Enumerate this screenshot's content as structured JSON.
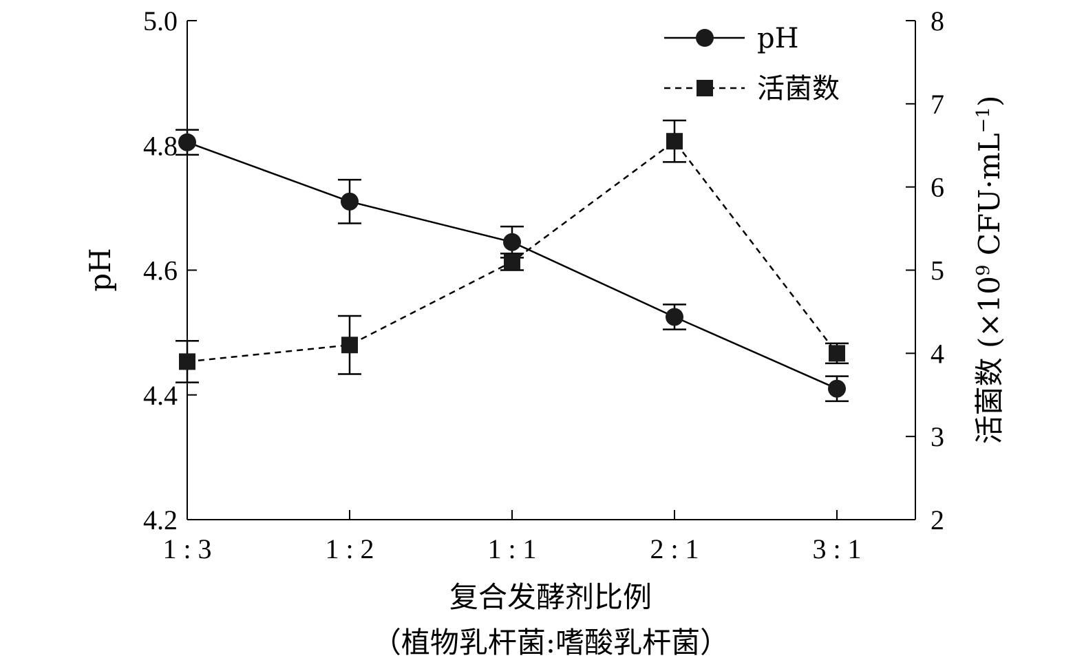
{
  "chart_data": {
    "type": "line",
    "categories": [
      "1:3",
      "1:2",
      "1:1",
      "2:1",
      "3:1"
    ],
    "xlabel": "复合发酵剂比例",
    "xlabel_sub": "（植物乳杆菌:嗜酸乳杆菌）",
    "y_left": {
      "label": "pH",
      "ylim": [
        4.2,
        5.0
      ],
      "ticks": [
        "4.2",
        "4.4",
        "4.6",
        "4.8",
        "5.0"
      ]
    },
    "y_right": {
      "label_main": "活菌数 (×10",
      "label_sup": "9",
      "label_end": " CFU·mL",
      "label_sup2": "−1",
      "label_close": ")",
      "ylim": [
        2,
        8
      ],
      "ticks": [
        "2",
        "3",
        "4",
        "5",
        "6",
        "7",
        "8"
      ]
    },
    "series": [
      {
        "name": "pH",
        "axis": "left",
        "marker": "circle",
        "line": "solid",
        "values": [
          4.805,
          4.71,
          4.645,
          4.525,
          4.41
        ],
        "errors": [
          0.02,
          0.035,
          0.025,
          0.02,
          0.02
        ]
      },
      {
        "name": "活菌数",
        "axis": "right",
        "marker": "square",
        "line": "dashed",
        "values": [
          3.9,
          4.1,
          5.1,
          6.55,
          4.0
        ],
        "errors": [
          0.25,
          0.35,
          0.1,
          0.25,
          0.12
        ]
      }
    ],
    "legend_position": "top-right",
    "grid": false,
    "colors": {
      "line": "#000000",
      "marker": "#1a1a1a"
    }
  }
}
